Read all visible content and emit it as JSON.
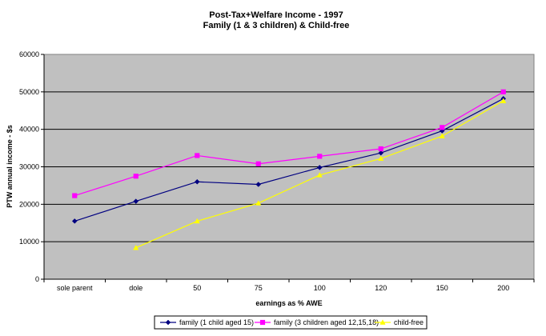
{
  "chart_data": {
    "type": "line",
    "title": "Post-Tax+Welfare Income - 1997",
    "subtitle": "Family (1 & 3 children) & Child-free",
    "xlabel": "earnings as % AWE",
    "ylabel": "PTW annual income - $s",
    "categories": [
      "sole parent",
      "dole",
      "50",
      "75",
      "100",
      "120",
      "150",
      "200"
    ],
    "ylim": [
      0,
      60000
    ],
    "yticks": [
      0,
      10000,
      20000,
      30000,
      40000,
      50000,
      60000
    ],
    "ytick_labels": [
      "0",
      "10000",
      "20000",
      "30000",
      "40000",
      "50000",
      "60000"
    ],
    "grid": "horizontal",
    "legend_position": "bottom",
    "series": [
      {
        "name": "family (1 child aged 15)",
        "color": "#000080",
        "marker": "diamond",
        "values": [
          15500,
          20800,
          26000,
          25300,
          29800,
          33700,
          39600,
          48200
        ]
      },
      {
        "name": "family (3 children aged 12,15,18)",
        "color": "#FF00FF",
        "marker": "square",
        "values": [
          22300,
          27500,
          33000,
          30800,
          32800,
          34800,
          40500,
          50000
        ]
      },
      {
        "name": "child-free",
        "color": "#FFFF00",
        "marker": "triangle",
        "values": [
          null,
          8400,
          15500,
          20300,
          27800,
          32200,
          38200,
          47600
        ]
      }
    ]
  }
}
